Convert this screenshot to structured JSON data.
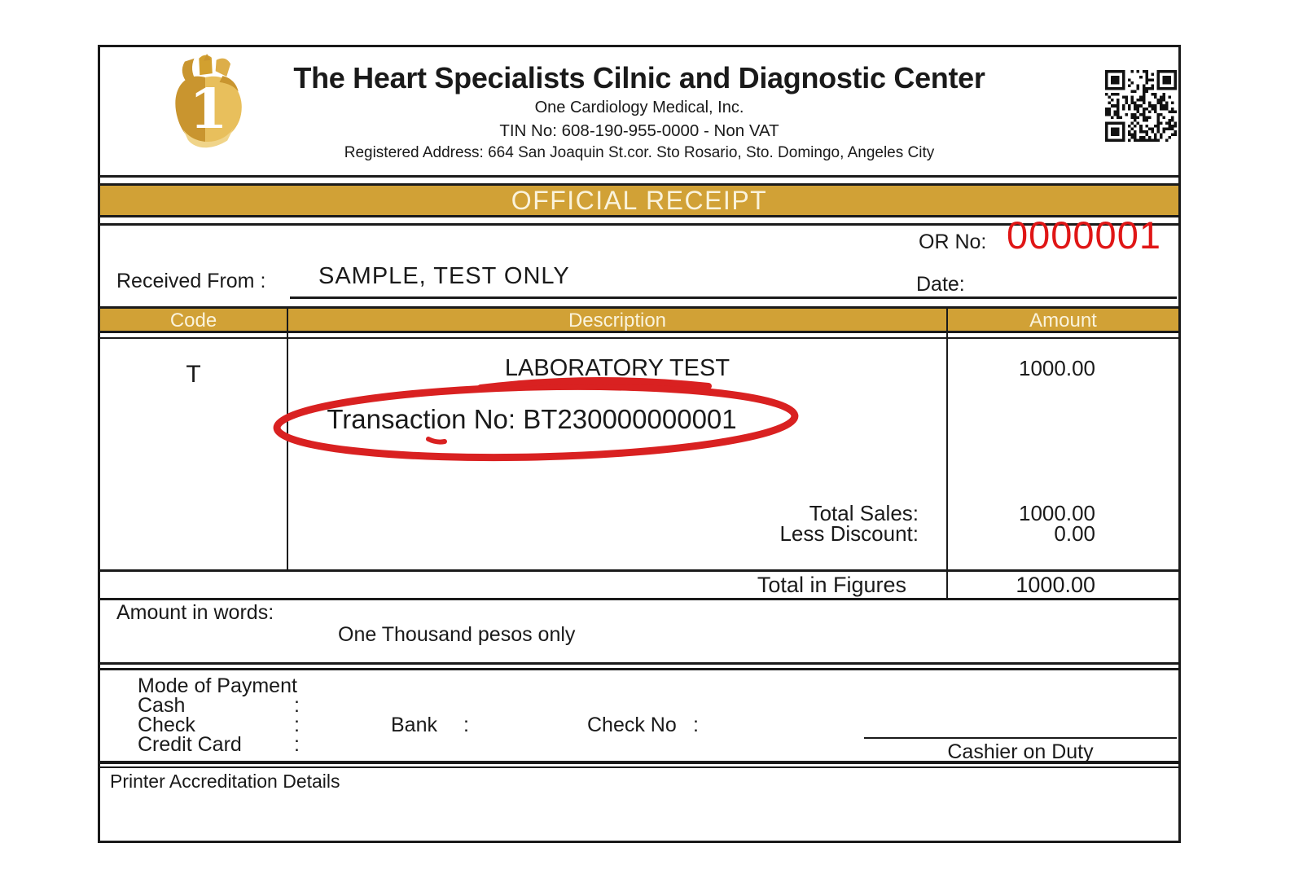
{
  "header": {
    "clinic_name": "The Heart Specialists Cilnic and Diagnostic Center",
    "company": "One Cardiology Medical, Inc.",
    "tin_line": "TIN No: 608-190-955-0000 - Non VAT",
    "address_line": "Registered Address: 664 San Joaquin St.cor. Sto Rosario, Sto. Domingo, Angeles City"
  },
  "banner": {
    "title": "OFFICIAL RECEIPT"
  },
  "receipt_info": {
    "or_no_label": "OR No:",
    "or_no_value": "0000001",
    "received_from_label": "Received From :",
    "received_from_value": "SAMPLE, TEST ONLY",
    "date_label": "Date:"
  },
  "table": {
    "headers": {
      "code": "Code",
      "description": "Description",
      "amount": "Amount"
    },
    "rows": [
      {
        "code": "T",
        "description": "LABORATORY TEST",
        "amount": "1000.00"
      }
    ],
    "transaction_no": "Transaction No: BT230000000001",
    "total_sales_label": "Total Sales:",
    "total_sales_value": "1000.00",
    "less_discount_label": "Less Discount:",
    "less_discount_value": "0.00",
    "total_in_figures_label": "Total in Figures",
    "total_in_figures_value": "1000.00"
  },
  "amount_in_words": {
    "label": "Amount in words:",
    "value": "One Thousand pesos only"
  },
  "payment": {
    "mode_label": "Mode of Payment",
    "cash_label": "Cash",
    "check_label": "Check",
    "credit_card_label": "Credit Card",
    "colon": ":",
    "bank_label": "Bank",
    "check_no_label": "Check No",
    "cashier_label": "Cashier on Duty"
  },
  "footer": {
    "printer_details_label": "Printer Accreditation Details"
  },
  "icons": {
    "logo": "heart-logo-icon",
    "qr": "qr-code-icon"
  },
  "colors": {
    "gold": "#D1A136",
    "gold_text": "#FAF3DC",
    "red": "#E01616",
    "annotation_red": "#D92121",
    "ink": "#1a1a1a"
  }
}
